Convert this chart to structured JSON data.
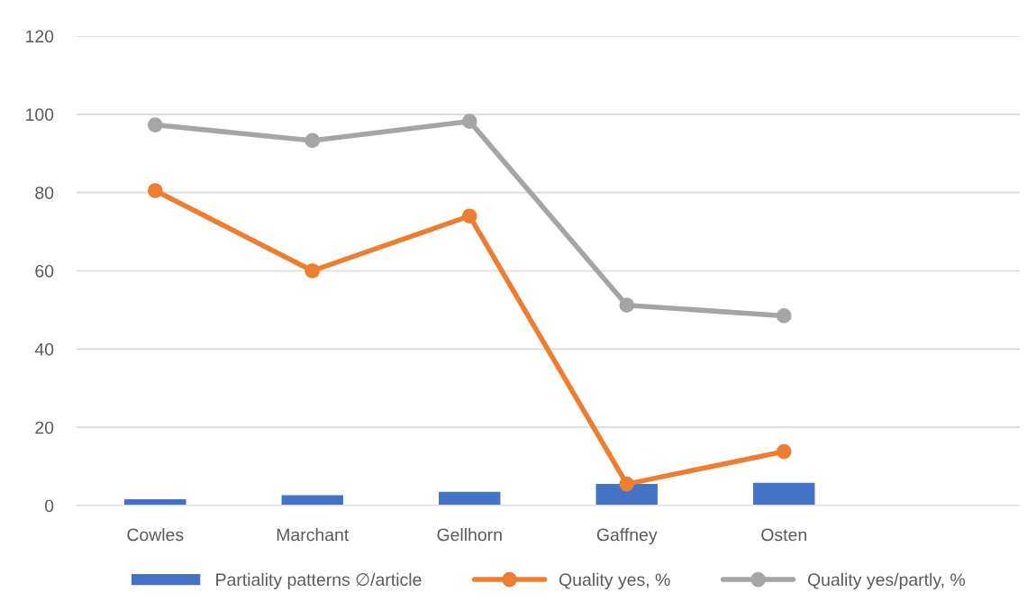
{
  "chart_data": {
    "type": "bar",
    "categories": [
      "Cowles",
      "Marchant",
      "Gellhorn",
      "Gaffney",
      "Osten",
      null
    ],
    "series": [
      {
        "name": "Partiality patterns ∅/article",
        "color": "#4472c4",
        "values": [
          1.8,
          2.8,
          3.7,
          5.7,
          6.0,
          null
        ]
      },
      {
        "name": "Quality yes, %",
        "type": "line",
        "color": "#ed7d31",
        "values": [
          80.5,
          60,
          74,
          5.5,
          13.8,
          null
        ]
      },
      {
        "name": "Quality yes/partly, %",
        "type": "line",
        "color": "#a5a5a5",
        "values": [
          97.3,
          93.3,
          98.2,
          51.2,
          48.5,
          null
        ]
      }
    ],
    "ylim": [
      0,
      120
    ],
    "yticks": [
      0,
      20,
      40,
      60,
      80,
      100,
      120
    ],
    "grid": "y",
    "legend": "bottom",
    "marker": "circle",
    "line_style": "solid"
  }
}
